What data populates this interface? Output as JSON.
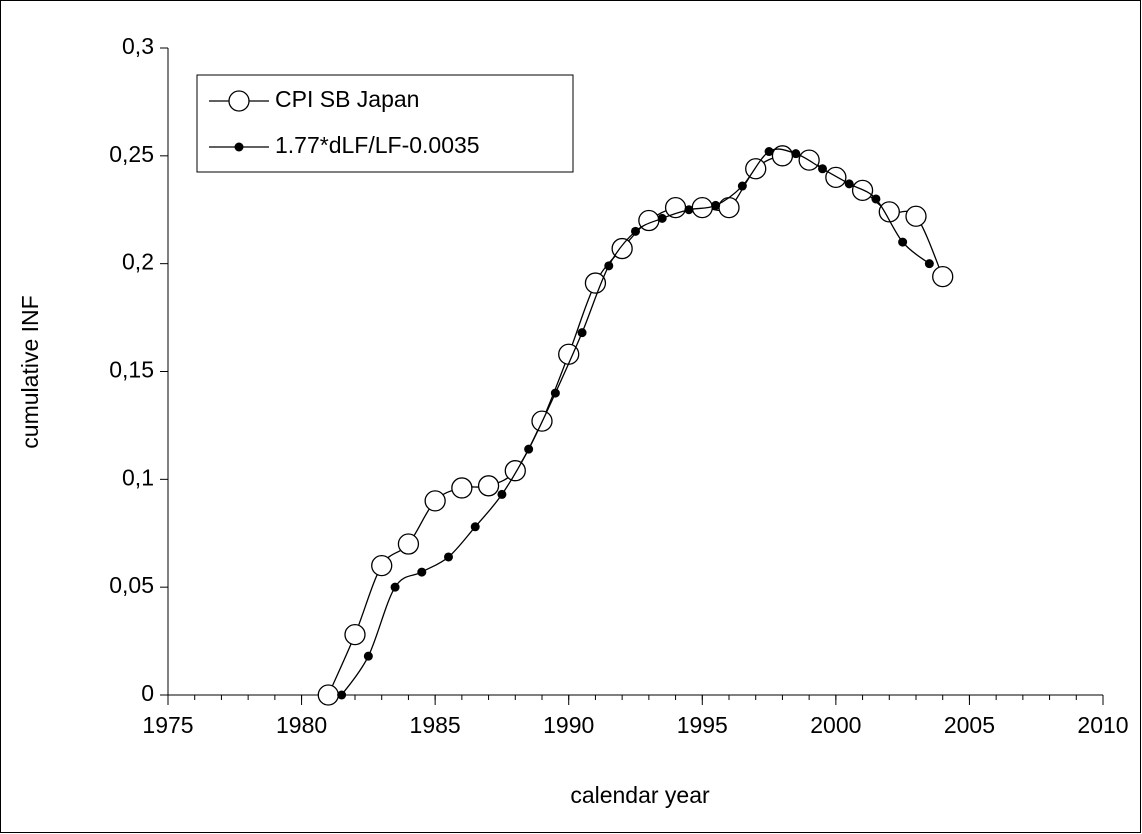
{
  "chart_data": {
    "type": "line",
    "x_label": "calendar year",
    "y_label": "cumulative INF",
    "xlim": [
      1975,
      2010
    ],
    "xticks": [
      1975,
      1980,
      1985,
      1990,
      1995,
      2000,
      2005,
      2010
    ],
    "ylim": [
      0,
      0.3
    ],
    "yticks": [
      0,
      {
        "value": 0.05,
        "label": "0,05"
      },
      {
        "value": 0.1,
        "label": "0,1"
      },
      {
        "value": 0.15,
        "label": "0,15"
      },
      {
        "value": 0.2,
        "label": "0,2"
      },
      {
        "value": 0.25,
        "label": "0,25"
      },
      {
        "value": 0.3,
        "label": "0,3"
      }
    ],
    "legend": "upper left",
    "series": [
      {
        "name": "CPI SB Japan",
        "color": "#000000",
        "marker": "open-circle",
        "x": [
          1981,
          1982,
          1983,
          1984,
          1985,
          1986,
          1987,
          1988,
          1989,
          1990,
          1991,
          1992,
          1993,
          1994,
          1995,
          1996,
          1997,
          1998,
          1999,
          2000,
          2001,
          2002,
          2003,
          2004
        ],
        "values": [
          0,
          0.028,
          0.06,
          0.07,
          0.09,
          0.096,
          0.097,
          0.104,
          0.127,
          0.158,
          0.191,
          0.207,
          0.22,
          0.226,
          0.226,
          0.226,
          0.244,
          0.25,
          0.248,
          0.24,
          0.234,
          0.224,
          0.222,
          0.194
        ]
      },
      {
        "name": "1.77*dLF/LF-0.0035",
        "color": "#000000",
        "marker": "dot",
        "x": [
          1981.5,
          1982.5,
          1983.5,
          1984.5,
          1985.5,
          1986.5,
          1987.5,
          1988.5,
          1989.5,
          1990.5,
          1991.5,
          1992.5,
          1993.5,
          1994.5,
          1995.5,
          1996.5,
          1997.5,
          1998.5,
          1999.5,
          2000.5,
          2001.5,
          2002.5,
          2003.5
        ],
        "values": [
          0,
          0.018,
          0.05,
          0.057,
          0.064,
          0.078,
          0.093,
          0.114,
          0.14,
          0.168,
          0.199,
          0.215,
          0.221,
          0.225,
          0.227,
          0.236,
          0.252,
          0.251,
          0.244,
          0.237,
          0.23,
          0.21,
          0.2
        ]
      }
    ]
  }
}
